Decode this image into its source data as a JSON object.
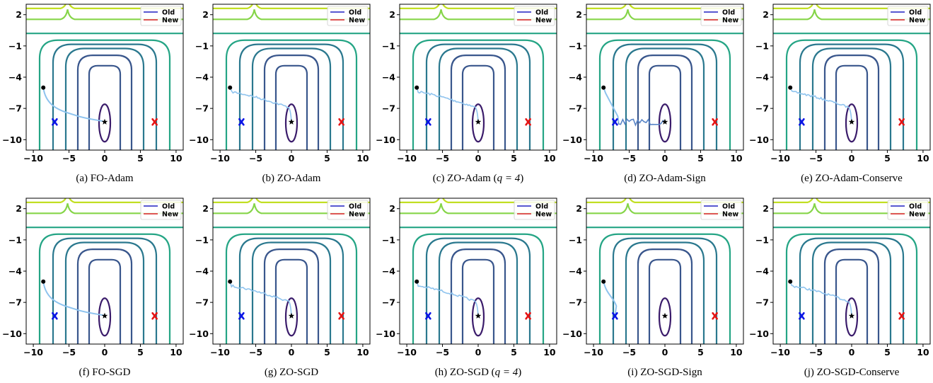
{
  "figure": {
    "legend": [
      {
        "label": "Old",
        "color": "#2020c0"
      },
      {
        "label": "New",
        "color": "#d62020"
      }
    ],
    "colors": {
      "contour_levels": [
        "#3b1c6b",
        "#39568c",
        "#2a788e",
        "#25a585",
        "#86d549",
        "#c2df23"
      ],
      "trajectory": "#8ec3ee",
      "trajectory_noisy": "#5a86c8",
      "start_marker": "#000000",
      "optimum_marker": "#000000",
      "old_marker": "#0a14e6",
      "new_marker": "#e61414"
    },
    "markers": {
      "start": [
        -8.6,
        -5.0
      ],
      "optimum": [
        0,
        -8.3
      ],
      "old": [
        -7.0,
        -8.3
      ],
      "new": [
        7.0,
        -8.3
      ]
    }
  },
  "chart_data": [
    {
      "type": "contour",
      "panel": "a",
      "caption": "(a) FO-Adam",
      "trajectory_style": "smooth",
      "endpoint": [
        0,
        -8.3
      ],
      "xlim": [
        -11,
        11
      ],
      "ylim": [
        -11,
        3
      ],
      "xticks": [
        "−10",
        "−5",
        "0",
        "5",
        "10"
      ],
      "yticks": [
        "2",
        "−1",
        "−4",
        "−7",
        "−10"
      ]
    },
    {
      "type": "contour",
      "panel": "b",
      "caption": "(b) ZO-Adam",
      "trajectory_style": "jagged",
      "endpoint": [
        0,
        -8.3
      ],
      "xlim": [
        -11,
        11
      ],
      "ylim": [
        -11,
        3
      ],
      "xticks": [
        "−10",
        "−5",
        "0",
        "5",
        "10"
      ],
      "yticks": [
        "2",
        "−1",
        "−4",
        "−7",
        "−10"
      ]
    },
    {
      "type": "contour",
      "panel": "c",
      "caption": "(c) ZO-Adam (",
      "caption_math": "q = 4",
      "caption_end": ")",
      "trajectory_style": "jagged",
      "endpoint": [
        0,
        -8.3
      ],
      "xlim": [
        -11,
        11
      ],
      "ylim": [
        -11,
        3
      ],
      "xticks": [
        "−10",
        "−5",
        "0",
        "5",
        "10"
      ],
      "yticks": [
        "2",
        "−1",
        "−4",
        "−7",
        "−10"
      ]
    },
    {
      "type": "contour",
      "panel": "d",
      "caption": "(d) ZO-Adam-Sign",
      "trajectory_style": "sign_oscillating",
      "endpoint": [
        0,
        -8.3
      ],
      "xlim": [
        -11,
        11
      ],
      "ylim": [
        -11,
        3
      ],
      "xticks": [
        "−10",
        "−5",
        "0",
        "5",
        "10"
      ],
      "yticks": [
        "2",
        "−1",
        "−4",
        "−7",
        "−10"
      ]
    },
    {
      "type": "contour",
      "panel": "e",
      "caption": "(e) ZO-Adam-Conserve",
      "trajectory_style": "jagged",
      "endpoint": [
        0,
        -8.3
      ],
      "xlim": [
        -11,
        11
      ],
      "ylim": [
        -11,
        3
      ],
      "xticks": [
        "−10",
        "−5",
        "0",
        "5",
        "10"
      ],
      "yticks": [
        "2",
        "−1",
        "−4",
        "−7",
        "−10"
      ]
    },
    {
      "type": "contour",
      "panel": "f",
      "caption": "(f) FO-SGD",
      "trajectory_style": "smooth",
      "endpoint": [
        0,
        -8.3
      ],
      "xlim": [
        -11,
        11
      ],
      "ylim": [
        -11,
        3
      ],
      "xticks": [
        "−10",
        "−5",
        "0",
        "5",
        "10"
      ],
      "yticks": [
        "2",
        "−1",
        "−4",
        "−7",
        "−10"
      ]
    },
    {
      "type": "contour",
      "panel": "g",
      "caption": "(g) ZO-SGD",
      "trajectory_style": "jagged",
      "endpoint": [
        0,
        -8.3
      ],
      "xlim": [
        -11,
        11
      ],
      "ylim": [
        -11,
        3
      ],
      "xticks": [
        "−10",
        "−5",
        "0",
        "5",
        "10"
      ],
      "yticks": [
        "2",
        "−1",
        "−4",
        "−7",
        "−10"
      ]
    },
    {
      "type": "contour",
      "panel": "h",
      "caption": "(h) ZO-SGD (",
      "caption_math": "q = 4",
      "caption_end": ")",
      "trajectory_style": "jagged",
      "endpoint": [
        0,
        -8.3
      ],
      "xlim": [
        -11,
        11
      ],
      "ylim": [
        -11,
        3
      ],
      "xticks": [
        "−10",
        "−5",
        "0",
        "5",
        "10"
      ],
      "yticks": [
        "2",
        "−1",
        "−4",
        "−7",
        "−10"
      ]
    },
    {
      "type": "contour",
      "panel": "i",
      "caption": "(i) ZO-SGD-Sign",
      "trajectory_style": "sign_to_old",
      "endpoint": [
        -7.0,
        -8.3
      ],
      "xlim": [
        -11,
        11
      ],
      "ylim": [
        -11,
        3
      ],
      "xticks": [
        "−10",
        "−5",
        "0",
        "5",
        "10"
      ],
      "yticks": [
        "2",
        "−1",
        "−4",
        "−7",
        "−10"
      ]
    },
    {
      "type": "contour",
      "panel": "j",
      "caption": "(j) ZO-SGD-Conserve",
      "trajectory_style": "jagged",
      "endpoint": [
        0,
        -8.3
      ],
      "xlim": [
        -11,
        11
      ],
      "ylim": [
        -11,
        3
      ],
      "xticks": [
        "−10",
        "−5",
        "0",
        "5",
        "10"
      ],
      "yticks": [
        "2",
        "−1",
        "−4",
        "−7",
        "−10"
      ]
    }
  ]
}
